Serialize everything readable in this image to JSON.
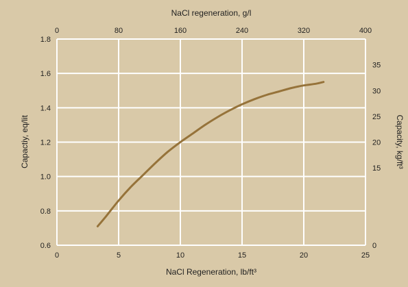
{
  "colors": {
    "background": "#d9c9a8",
    "grid": "#ffffff",
    "curve": "#96733a",
    "text": "#1f1f1f"
  },
  "chart_data": {
    "type": "line",
    "title": "",
    "top_axis": {
      "label": "NaCl regeneration, g/l",
      "range": [
        0,
        400
      ],
      "ticks": [
        "0",
        "80",
        "160",
        "240",
        "320",
        "400"
      ]
    },
    "bottom_axis": {
      "label": "NaCl Regeneration, lb/ft³",
      "range": [
        0,
        25
      ],
      "ticks": [
        "0",
        "5",
        "10",
        "15",
        "20",
        "25"
      ]
    },
    "left_axis": {
      "label": "Capactiy, eq/lit",
      "range": [
        0.6,
        1.8
      ],
      "ticks": [
        "0.6",
        "0.8",
        "1.0",
        "1.2",
        "1.4",
        "1.6",
        "1.8"
      ]
    },
    "right_axis": {
      "label": "Capacity, kg/ft³",
      "range": [
        0,
        40
      ],
      "ticks": [
        "0",
        "15",
        "20",
        "25",
        "30",
        "35"
      ]
    },
    "grid": true,
    "series": [
      {
        "x": [
          3.3,
          4,
          5,
          6,
          7,
          8,
          9,
          10,
          11,
          12,
          13,
          14,
          15,
          16,
          17,
          18,
          19,
          20,
          21,
          21.6
        ],
        "y": [
          0.71,
          0.77,
          0.86,
          0.94,
          1.01,
          1.08,
          1.145,
          1.2,
          1.25,
          1.3,
          1.345,
          1.385,
          1.42,
          1.45,
          1.475,
          1.495,
          1.515,
          1.53,
          1.54,
          1.55
        ]
      }
    ]
  }
}
